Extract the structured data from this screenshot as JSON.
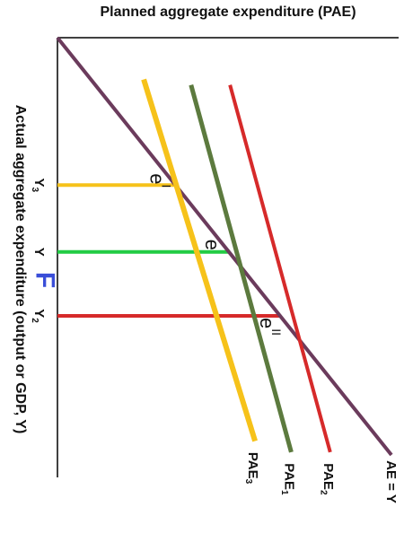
{
  "chart_data": {
    "type": "line",
    "title": "",
    "xlabel": "Actual aggregate expenditure (output or GDP, Y)",
    "ylabel": "Planned aggregate expenditure (PAE)",
    "orientation": "rotated 90° clockwise",
    "ticks": [
      {
        "label": "Y",
        "sub": "3",
        "x": 0.53,
        "color": "#f6c21a"
      },
      {
        "label": "Y",
        "sub": "",
        "x": 0.77,
        "color": "#22cc44"
      },
      {
        "label": "Y",
        "sub": "2",
        "x": 1.0,
        "color": "#d62a2a"
      }
    ],
    "series": [
      {
        "name": "AE = Y",
        "sub": "",
        "color": "#6b3b5c",
        "width": 4,
        "points": [
          [
            0.0,
            0.0
          ],
          [
            1.5,
            1.2
          ]
        ]
      },
      {
        "name": "PAE",
        "sub": "3",
        "color": "#f6c21a",
        "width": 6,
        "points": [
          [
            0.15,
            0.31
          ],
          [
            1.45,
            0.71
          ]
        ]
      },
      {
        "name": "PAE",
        "sub": "1",
        "color": "#5c7a3e",
        "width": 5,
        "points": [
          [
            0.17,
            0.48
          ],
          [
            1.49,
            0.84
          ]
        ]
      },
      {
        "name": "PAE",
        "sub": "2",
        "color": "#d62a2a",
        "width": 4,
        "points": [
          [
            0.17,
            0.62
          ],
          [
            1.49,
            0.98
          ]
        ]
      }
    ],
    "equilibria": [
      {
        "label": "e",
        "sup": "I",
        "x": 0.53,
        "y": 0.424
      },
      {
        "label": "e",
        "sup": "",
        "x": 0.77,
        "y": 0.616
      },
      {
        "label": "e",
        "sup": "II",
        "x": 1.0,
        "y": 0.8
      }
    ],
    "xlim": [
      0,
      1.7
    ],
    "ylim": [
      0,
      1.4
    ],
    "grid": false,
    "legend": "none"
  },
  "annotation": {
    "text": "F",
    "color": "#3a4ed8"
  }
}
